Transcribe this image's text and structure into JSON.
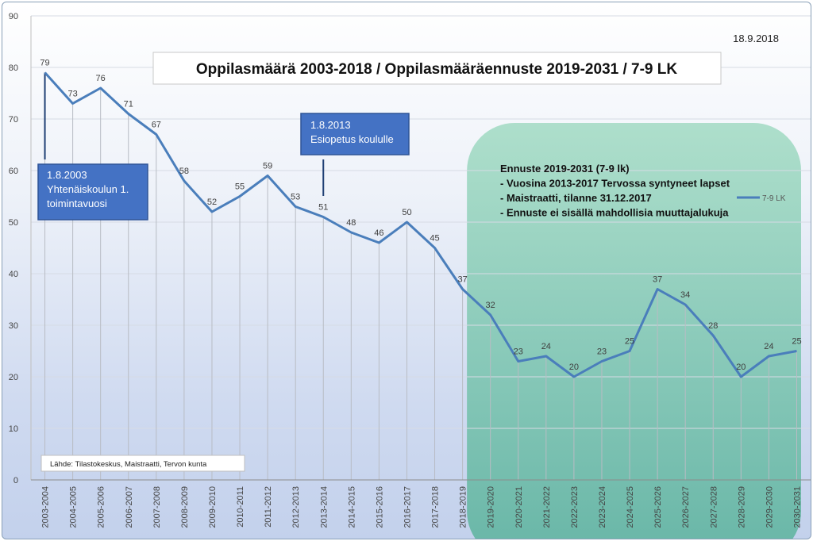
{
  "chart_data": {
    "type": "line",
    "title": "Oppilasmäärä 2003-2018 / Oppilasmääräennuste 2019-2031 / 7-9 LK",
    "date": "18.9.2018",
    "categories": [
      "2003-2004",
      "2004-2005",
      "2005-2006",
      "2006-2007",
      "2007-2008",
      "2008-2009",
      "2009-2010",
      "2010-2011",
      "2011-2012",
      "2012-2013",
      "2013-2014",
      "2014-2015",
      "2015-2016",
      "2016-2017",
      "2017-2018",
      "2018-2019",
      "2019-2020",
      "2020-2021",
      "2021-2022",
      "2022-2023",
      "2023-2024",
      "2024-2025",
      "2025-2026",
      "2026-2027",
      "2027-2028",
      "2028-2029",
      "2029-2030",
      "2030-2031"
    ],
    "series": [
      {
        "name": "7-9 LK",
        "color": "#4a7ebb",
        "values": [
          79,
          73,
          76,
          71,
          67,
          58,
          52,
          55,
          59,
          53,
          51,
          48,
          46,
          50,
          45,
          37,
          32,
          23,
          24,
          20,
          23,
          25,
          37,
          34,
          28,
          20,
          24,
          25
        ]
      }
    ],
    "yticks": [
      "0",
      "10",
      "20",
      "30",
      "40",
      "50",
      "60",
      "70",
      "80",
      "90"
    ],
    "ylim": [
      0,
      90
    ],
    "grid": "vertical",
    "legend_position": "right",
    "annotations": [
      {
        "lines": [
          "1.8.2003",
          "Yhtenäiskoulun 1.",
          "toimintavuosi"
        ],
        "category": "2003-2004"
      },
      {
        "lines": [
          "1.8.2013",
          "Esiopetus koululle"
        ],
        "category": "2013-2014"
      }
    ],
    "forecast_box": {
      "start_category": "2019-2020",
      "lines": [
        "Ennuste 2019-2031 (7-9 lk)",
        "- Vuosina 2013-2017 Tervossa syntyneet lapset",
        "- Maistraatti, tilanne 31.12.2017",
        "- Ennuste ei sisällä mahdollisia muuttajalukuja"
      ]
    },
    "source": "Lähde: Tilastokeskus, Maistraatti, Tervon kunta"
  }
}
